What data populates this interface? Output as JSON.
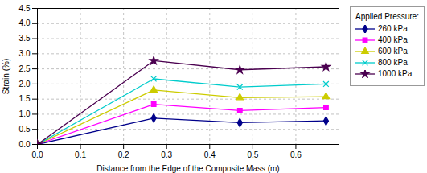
{
  "chart_data": {
    "type": "line",
    "xlabel": "Distance from the Edge of the Composite Mass (m)",
    "ylabel": "Strain (%)",
    "legend_title": "Applied Pressure:",
    "x": [
      0.0,
      0.27,
      0.47,
      0.67
    ],
    "series": [
      {
        "name": "260 kPa",
        "color": "#00008B",
        "marker": "diamond",
        "values": [
          0.0,
          0.87,
          0.72,
          0.78
        ]
      },
      {
        "name": "400 kPa",
        "color": "#FF00FF",
        "marker": "square",
        "values": [
          0.0,
          1.33,
          1.12,
          1.22
        ]
      },
      {
        "name": "600 kPa",
        "color": "#CCCC00",
        "marker": "triangle",
        "values": [
          0.0,
          1.8,
          1.55,
          1.58
        ]
      },
      {
        "name": "800 kPa",
        "color": "#00CCCC",
        "marker": "x",
        "values": [
          0.0,
          2.17,
          1.9,
          2.0
        ]
      },
      {
        "name": "1000 kPa",
        "color": "#4B0050",
        "marker": "star",
        "values": [
          0.0,
          2.77,
          2.47,
          2.57
        ]
      }
    ],
    "xlim": [
      0.0,
      0.7
    ],
    "xticks": [
      {
        "value": 0,
        "label": "0.0"
      },
      0.1,
      0.2,
      0.3,
      0.4,
      0.5,
      0.6
    ],
    "ylim": [
      0.0,
      4.5
    ],
    "yticks": [
      {
        "value": 0,
        "label": "0.0"
      },
      0.5,
      {
        "value": 1,
        "label": "1.0"
      },
      1.5,
      {
        "value": 2,
        "label": "2.0"
      },
      2.5,
      {
        "value": 3,
        "label": "3.0"
      },
      3.5,
      {
        "value": 4,
        "label": "4.0"
      },
      4.5
    ],
    "grid": true,
    "legend": "right"
  }
}
